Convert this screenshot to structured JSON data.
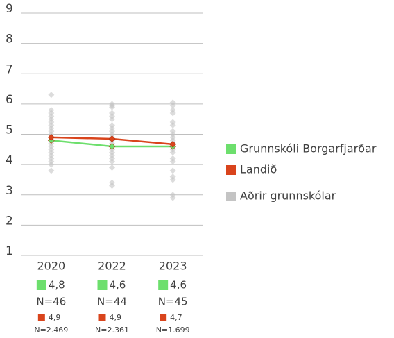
{
  "chart_data": {
    "type": "line",
    "categories": [
      "2020",
      "2022",
      "2023"
    ],
    "ylim": [
      1,
      9
    ],
    "yticks": [
      1,
      2,
      3,
      4,
      5,
      6,
      7,
      8,
      9
    ],
    "grid": true,
    "series": [
      {
        "name": "Grunnskóli Borgarfjarðar",
        "color": "#6ddf6d",
        "values": [
          4.8,
          4.6,
          4.6
        ],
        "value_labels": [
          "4,8",
          "4,6",
          "4,6"
        ],
        "n_labels": [
          "N=46",
          "N=44",
          "N=45"
        ]
      },
      {
        "name": "Landið",
        "color": "#d9441c",
        "values": [
          4.9,
          4.85,
          4.67
        ],
        "value_labels": [
          "4,9",
          "4,9",
          "4,7"
        ],
        "n_labels": [
          "N=2.469",
          "N=2.361",
          "N=1.699"
        ]
      },
      {
        "name": "Aðrir grunnskólar",
        "color": "#c4c4c4",
        "type": "scatter",
        "values": [
          [
            6.3,
            5.8,
            5.7,
            5.6,
            5.5,
            5.4,
            5.3,
            5.2,
            5.1,
            5.0,
            4.9,
            4.8,
            4.7,
            4.6,
            4.5,
            4.4,
            4.3,
            4.2,
            4.1,
            4.0,
            3.8
          ],
          [
            6.0,
            5.95,
            5.9,
            5.7,
            5.6,
            5.5,
            5.3,
            5.2,
            5.1,
            5.0,
            4.9,
            4.8,
            4.7,
            4.5,
            4.4,
            4.3,
            4.2,
            4.1,
            3.9,
            3.4,
            3.3
          ],
          [
            6.05,
            5.95,
            5.8,
            5.7,
            5.4,
            5.3,
            5.1,
            5.0,
            4.9,
            4.8,
            4.7,
            4.6,
            4.5,
            4.4,
            4.2,
            4.1,
            3.8,
            3.6,
            3.5,
            3.0,
            2.9
          ]
        ]
      }
    ]
  }
}
